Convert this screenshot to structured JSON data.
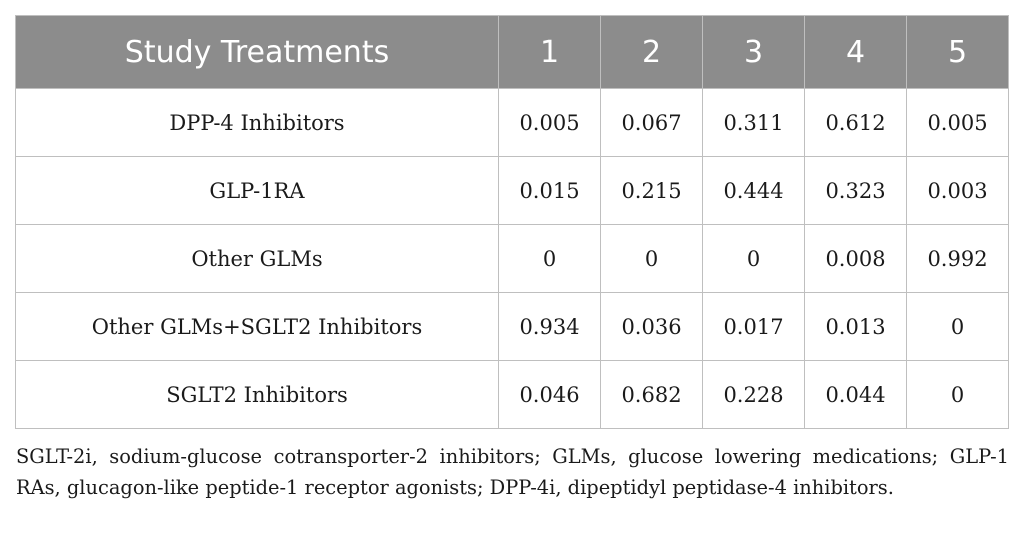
{
  "table": {
    "headers": [
      "Study Treatments",
      "1",
      "2",
      "3",
      "4",
      "5"
    ],
    "rows": [
      {
        "treatment": "DPP-4 Inhibitors",
        "values": [
          "0.005",
          "0.067",
          "0.311",
          "0.612",
          "0.005"
        ]
      },
      {
        "treatment": "GLP-1RA",
        "values": [
          "0.015",
          "0.215",
          "0.444",
          "0.323",
          "0.003"
        ]
      },
      {
        "treatment": "Other GLMs",
        "values": [
          "0",
          "0",
          "0",
          "0.008",
          "0.992"
        ]
      },
      {
        "treatment": "Other GLMs+SGLT2 Inhibitors",
        "values": [
          "0.934",
          "0.036",
          "0.017",
          "0.013",
          "0"
        ]
      },
      {
        "treatment": "SGLT2 Inhibitors",
        "values": [
          "0.046",
          "0.682",
          "0.228",
          "0.044",
          "0"
        ]
      }
    ]
  },
  "footnote": "SGLT-2i, sodium-glucose cotransporter-2 inhibitors; GLMs, glucose lowering medications; GLP-1 RAs, glucagon-like peptide-1 receptor agonists; DPP-4i, dipeptidyl peptidase-4 inhibitors.",
  "colors": {
    "header_background": "#8c8c8c",
    "header_text": "#ffffff",
    "border": "#bfbfbf",
    "body_text": "#1a1a1a"
  }
}
